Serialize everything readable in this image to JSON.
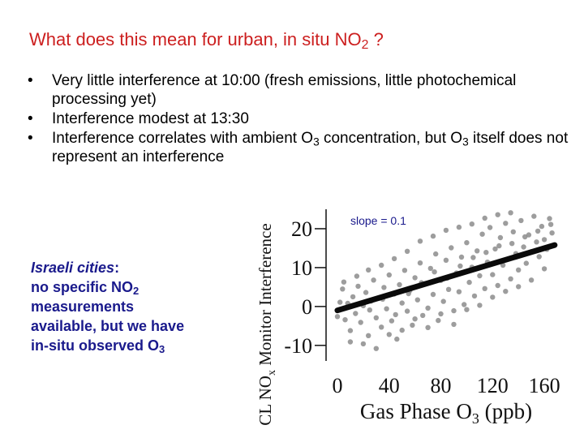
{
  "slide": {
    "title_main": "What does this mean for urban, in situ NO",
    "title_sub": "2",
    "title_end": " ?",
    "bullets": [
      {
        "text": "Very little interference at 10:00 (fresh emissions, little photochemical processing yet)"
      },
      {
        "text": "Interference modest at 13:30"
      },
      {
        "a": "Interference correlates with ambient O",
        "a_sub": "3",
        "b": " concentration, but O",
        "b_sub": "3",
        "c": " itself does not represent an interference"
      }
    ],
    "bullet_glyph": "•",
    "side_note": {
      "label": "Israeli cities",
      "colon": ":",
      "l1": "no specific NO",
      "l1_sub": "2",
      "l2": "measurements",
      "l3": "available, but we have",
      "l4": "in-situ observed O",
      "l4_sub": "3"
    }
  },
  "chart_data": {
    "type": "scatter",
    "ylabel_pre": "CL NO",
    "ylabel_sub": "x",
    "ylabel_post": " Monitor Interference",
    "xlabel_pre": "Gas Phase O",
    "xlabel_sub": "3",
    "xlabel_post": " (ppb)",
    "xlim": [
      -5,
      175
    ],
    "ylim": [
      -14,
      25
    ],
    "x_ticks": [
      0,
      40,
      80,
      120,
      160
    ],
    "y_ticks": [
      -10,
      0,
      10,
      20
    ],
    "x_tick_labels": [
      "0",
      "40",
      "80",
      "120",
      "160"
    ],
    "y_tick_labels": [
      "-10",
      "0",
      "10",
      "20"
    ],
    "annotation": "slope = 0.1",
    "fit": {
      "slope": 0.1,
      "x": [
        0,
        168
      ],
      "y": [
        -1,
        15.8
      ]
    },
    "points": [
      [
        0,
        -2.6
      ],
      [
        2,
        1.1
      ],
      [
        4,
        4.5
      ],
      [
        6,
        -3.4
      ],
      [
        8,
        0.8
      ],
      [
        10,
        -6.2
      ],
      [
        12,
        2.5
      ],
      [
        14,
        -1.8
      ],
      [
        16,
        5.2
      ],
      [
        18,
        -4.1
      ],
      [
        20,
        0.2
      ],
      [
        22,
        3.6
      ],
      [
        24,
        -7.5
      ],
      [
        26,
        1.4
      ],
      [
        28,
        6.8
      ],
      [
        30,
        -2.9
      ],
      [
        32,
        2.1
      ],
      [
        34,
        -5.3
      ],
      [
        36,
        4.9
      ],
      [
        38,
        -0.6
      ],
      [
        40,
        8.1
      ],
      [
        42,
        -3.7
      ],
      [
        44,
        3.2
      ],
      [
        46,
        -8.4
      ],
      [
        48,
        5.6
      ],
      [
        50,
        0.9
      ],
      [
        52,
        9.3
      ],
      [
        54,
        -1.2
      ],
      [
        56,
        4.1
      ],
      [
        58,
        -4.8
      ],
      [
        60,
        7.4
      ],
      [
        62,
        1.7
      ],
      [
        64,
        11.2
      ],
      [
        66,
        -2.3
      ],
      [
        68,
        5.9
      ],
      [
        70,
        -0.4
      ],
      [
        72,
        9.8
      ],
      [
        74,
        3.1
      ],
      [
        76,
        13.5
      ],
      [
        78,
        -3.6
      ],
      [
        80,
        6.7
      ],
      [
        82,
        1.3
      ],
      [
        84,
        11.9
      ],
      [
        86,
        4.4
      ],
      [
        88,
        15.1
      ],
      [
        90,
        -1.1
      ],
      [
        92,
        8.6
      ],
      [
        94,
        3.8
      ],
      [
        96,
        12.7
      ],
      [
        98,
        0.5
      ],
      [
        100,
        16.4
      ],
      [
        102,
        6.2
      ],
      [
        104,
        10.1
      ],
      [
        106,
        2.7
      ],
      [
        108,
        14.3
      ],
      [
        110,
        7.9
      ],
      [
        112,
        18.6
      ],
      [
        114,
        4.6
      ],
      [
        116,
        11.4
      ],
      [
        118,
        20.3
      ],
      [
        120,
        8.2
      ],
      [
        122,
        14.8
      ],
      [
        124,
        5.4
      ],
      [
        126,
        17.7
      ],
      [
        128,
        10.6
      ],
      [
        130,
        21.4
      ],
      [
        132,
        12.2
      ],
      [
        134,
        7.1
      ],
      [
        136,
        19.2
      ],
      [
        138,
        13.6
      ],
      [
        140,
        9.4
      ],
      [
        142,
        22.1
      ],
      [
        144,
        15.3
      ],
      [
        146,
        11.1
      ],
      [
        148,
        18.4
      ],
      [
        150,
        14.1
      ],
      [
        152,
        23.2
      ],
      [
        154,
        16.6
      ],
      [
        156,
        12.8
      ],
      [
        158,
        20.6
      ],
      [
        160,
        17.2
      ],
      [
        162,
        14.7
      ],
      [
        164,
        22.6
      ],
      [
        166,
        18.9
      ],
      [
        50,
        -6.1
      ],
      [
        60,
        -3.2
      ],
      [
        70,
        -5.4
      ],
      [
        80,
        -1.9
      ],
      [
        90,
        -4.6
      ],
      [
        100,
        -0.8
      ],
      [
        110,
        0.3
      ],
      [
        120,
        2.4
      ],
      [
        130,
        3.9
      ],
      [
        140,
        5.1
      ],
      [
        150,
        6.8
      ],
      [
        160,
        9.7
      ],
      [
        20,
        -9.6
      ],
      [
        30,
        -10.8
      ],
      [
        10,
        -9.1
      ],
      [
        40,
        -7.2
      ],
      [
        24,
        9.4
      ],
      [
        34,
        10.6
      ],
      [
        44,
        12.3
      ],
      [
        54,
        14.2
      ],
      [
        64,
        16.8
      ],
      [
        74,
        18.1
      ],
      [
        84,
        19.6
      ],
      [
        94,
        20.4
      ],
      [
        104,
        21.2
      ],
      [
        114,
        22.7
      ],
      [
        124,
        23.6
      ],
      [
        134,
        24.1
      ],
      [
        5,
        6.3
      ],
      [
        15,
        7.8
      ],
      [
        25,
        -0.9
      ],
      [
        35,
        1.9
      ],
      [
        45,
        -2.1
      ],
      [
        55,
        3.3
      ],
      [
        65,
        6.1
      ],
      [
        75,
        8.9
      ],
      [
        85,
        7.3
      ],
      [
        95,
        10.4
      ],
      [
        105,
        12.6
      ],
      [
        115,
        13.9
      ],
      [
        125,
        15.6
      ],
      [
        135,
        16.2
      ],
      [
        145,
        17.9
      ],
      [
        155,
        19.4
      ],
      [
        165,
        21.1
      ]
    ]
  },
  "colors": {
    "title": "#cc1f1f",
    "side_note": "#1a1a8c",
    "annotation": "#1a1a8c",
    "points": "#8c8c8c",
    "fit_line": "#0a0a0a"
  }
}
